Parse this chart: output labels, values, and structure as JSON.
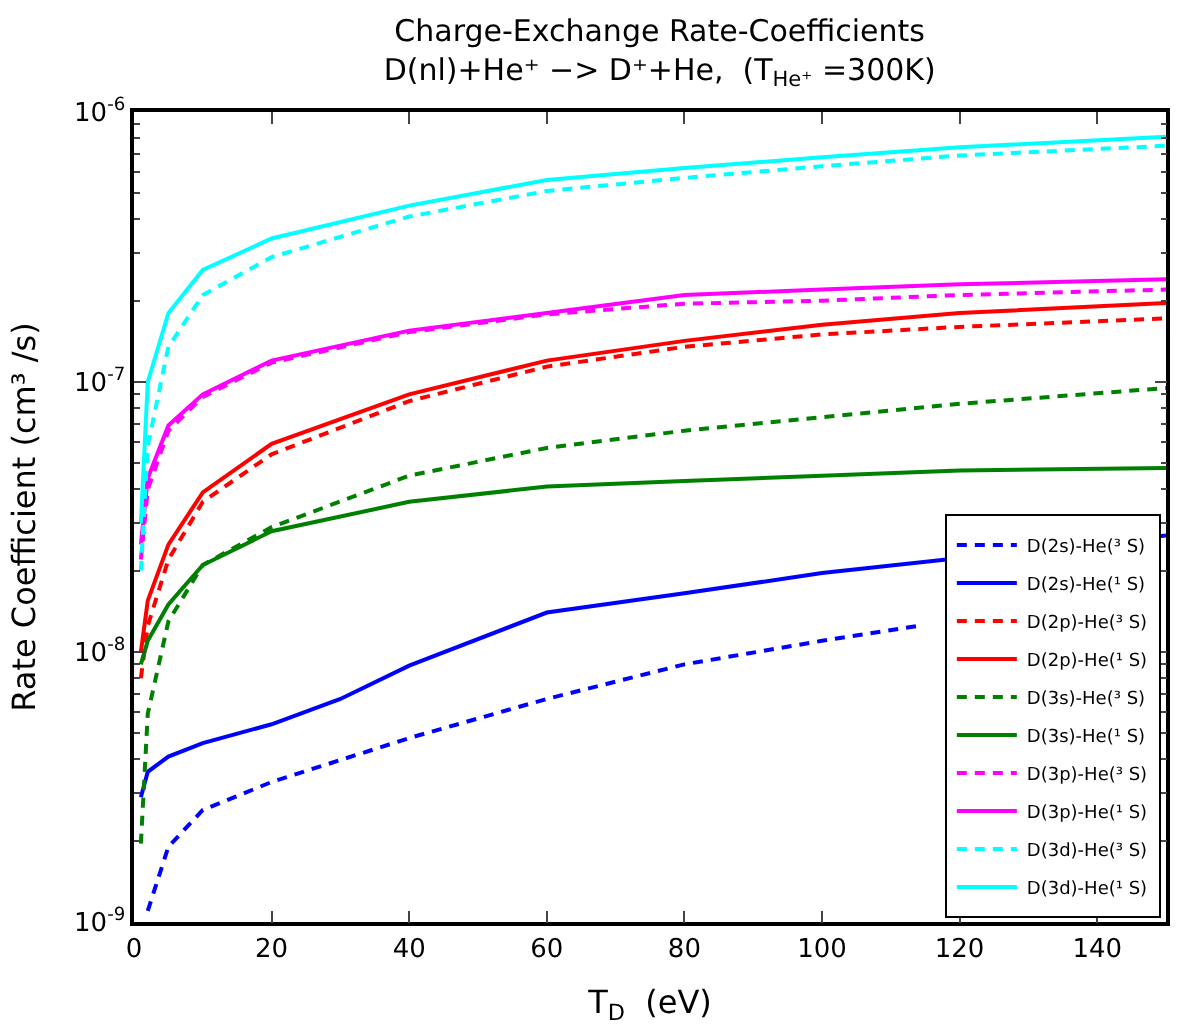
{
  "chart_data": {
    "type": "line",
    "title": "Charge-Exchange Rate-Coefficients\nD(nl)+He⁺ −> D⁺+He,  (T$_{He⁺}$ =300K)",
    "xlabel": "T$_{D}$  (eV)",
    "ylabel": "Rate Coefficient (cm³ /s)",
    "x": [
      1,
      2,
      5,
      10,
      20,
      40,
      60,
      80,
      100,
      120,
      150
    ],
    "log": "y",
    "xlim": [
      0,
      150
    ],
    "ylim": [
      1e-09,
      1e-06
    ],
    "xticks": [
      0,
      20,
      40,
      60,
      80,
      100,
      120,
      140
    ],
    "yticks": [
      {
        "value": 1e-09,
        "label": "10$^{-9}$"
      },
      {
        "value": 1e-08,
        "label": "10$^{-8}$"
      },
      {
        "value": 1e-07,
        "label": "10$^{-7}$"
      },
      {
        "value": 1e-06,
        "label": "10$^{-6}$"
      }
    ],
    "grid": false,
    "legend": "bottom right",
    "marker": "none",
    "series": [
      {
        "name": "D(2s)-He(³ S)",
        "color": "#0000ff",
        "line_style": "dashed",
        "x": [
          2,
          5,
          10,
          20,
          40,
          60,
          80,
          100,
          114
        ],
        "values": [
          1.1e-09,
          1.9e-09,
          2.6e-09,
          3.3e-09,
          4.8e-09,
          6.7e-09,
          9e-09,
          1.1e-08,
          1.25e-08
        ]
      },
      {
        "name": "D(2s)-He(¹ S)",
        "color": "#0000ff",
        "line_style": "solid",
        "x": [
          1,
          2,
          5,
          10,
          20,
          30,
          40,
          60,
          80,
          100,
          150
        ],
        "values": [
          2.9e-09,
          3.6e-09,
          4.1e-09,
          4.6e-09,
          5.4e-09,
          6.7e-09,
          8.9e-09,
          1.4e-08,
          1.65e-08,
          1.96e-08,
          2.7e-08
        ]
      },
      {
        "name": "D(2p)-He(³ S)",
        "color": "#ff0000",
        "line_style": "dashed",
        "values": [
          8e-09,
          1.25e-08,
          2.2e-08,
          3.6e-08,
          5.4e-08,
          8.5e-08,
          1.14e-07,
          1.35e-07,
          1.5e-07,
          1.6e-07,
          1.72e-07
        ]
      },
      {
        "name": "D(2p)-He(¹ S)",
        "color": "#ff0000",
        "line_style": "solid",
        "values": [
          1e-08,
          1.55e-08,
          2.5e-08,
          3.9e-08,
          5.9e-08,
          9e-08,
          1.2e-07,
          1.42e-07,
          1.63e-07,
          1.8e-07,
          1.96e-07
        ]
      },
      {
        "name": "D(3s)-He(³ S)",
        "color": "#008000",
        "line_style": "dashed",
        "values": [
          1.95e-09,
          5.9e-09,
          1.3e-08,
          2.1e-08,
          2.9e-08,
          4.5e-08,
          5.7e-08,
          6.6e-08,
          7.4e-08,
          8.3e-08,
          9.5e-08
        ]
      },
      {
        "name": "D(3s)-He(¹ S)",
        "color": "#008000",
        "line_style": "solid",
        "values": [
          9e-09,
          1.1e-08,
          1.5e-08,
          2.1e-08,
          2.8e-08,
          3.6e-08,
          4.1e-08,
          4.3e-08,
          4.5e-08,
          4.7e-08,
          4.8e-08
        ]
      },
      {
        "name": "D(3p)-He(³ S)",
        "color": "#ff00ff",
        "line_style": "dashed",
        "values": [
          2.2e-08,
          4e-08,
          6.6e-08,
          8.8e-08,
          1.18e-07,
          1.53e-07,
          1.78e-07,
          1.95e-07,
          2e-07,
          2.1e-07,
          2.2e-07
        ]
      },
      {
        "name": "D(3p)-He(¹ S)",
        "color": "#ff00ff",
        "line_style": "solid",
        "values": [
          2.5e-08,
          4.4e-08,
          6.9e-08,
          9e-08,
          1.2e-07,
          1.55e-07,
          1.8e-07,
          2.1e-07,
          2.2e-07,
          2.3e-07,
          2.4e-07
        ]
      },
      {
        "name": "D(3d)-He(³ S)",
        "color": "#00ffff",
        "line_style": "dashed",
        "values": [
          2e-08,
          5.8e-08,
          1.35e-07,
          2.1e-07,
          2.9e-07,
          4.1e-07,
          5.1e-07,
          5.7e-07,
          6.3e-07,
          6.9e-07,
          7.5e-07
        ]
      },
      {
        "name": "D(3d)-He(¹ S)",
        "color": "#00ffff",
        "line_style": "solid",
        "values": [
          3e-08,
          1e-07,
          1.8e-07,
          2.6e-07,
          3.4e-07,
          4.5e-07,
          5.6e-07,
          6.2e-07,
          6.8e-07,
          7.4e-07,
          8.1e-07
        ]
      }
    ]
  }
}
